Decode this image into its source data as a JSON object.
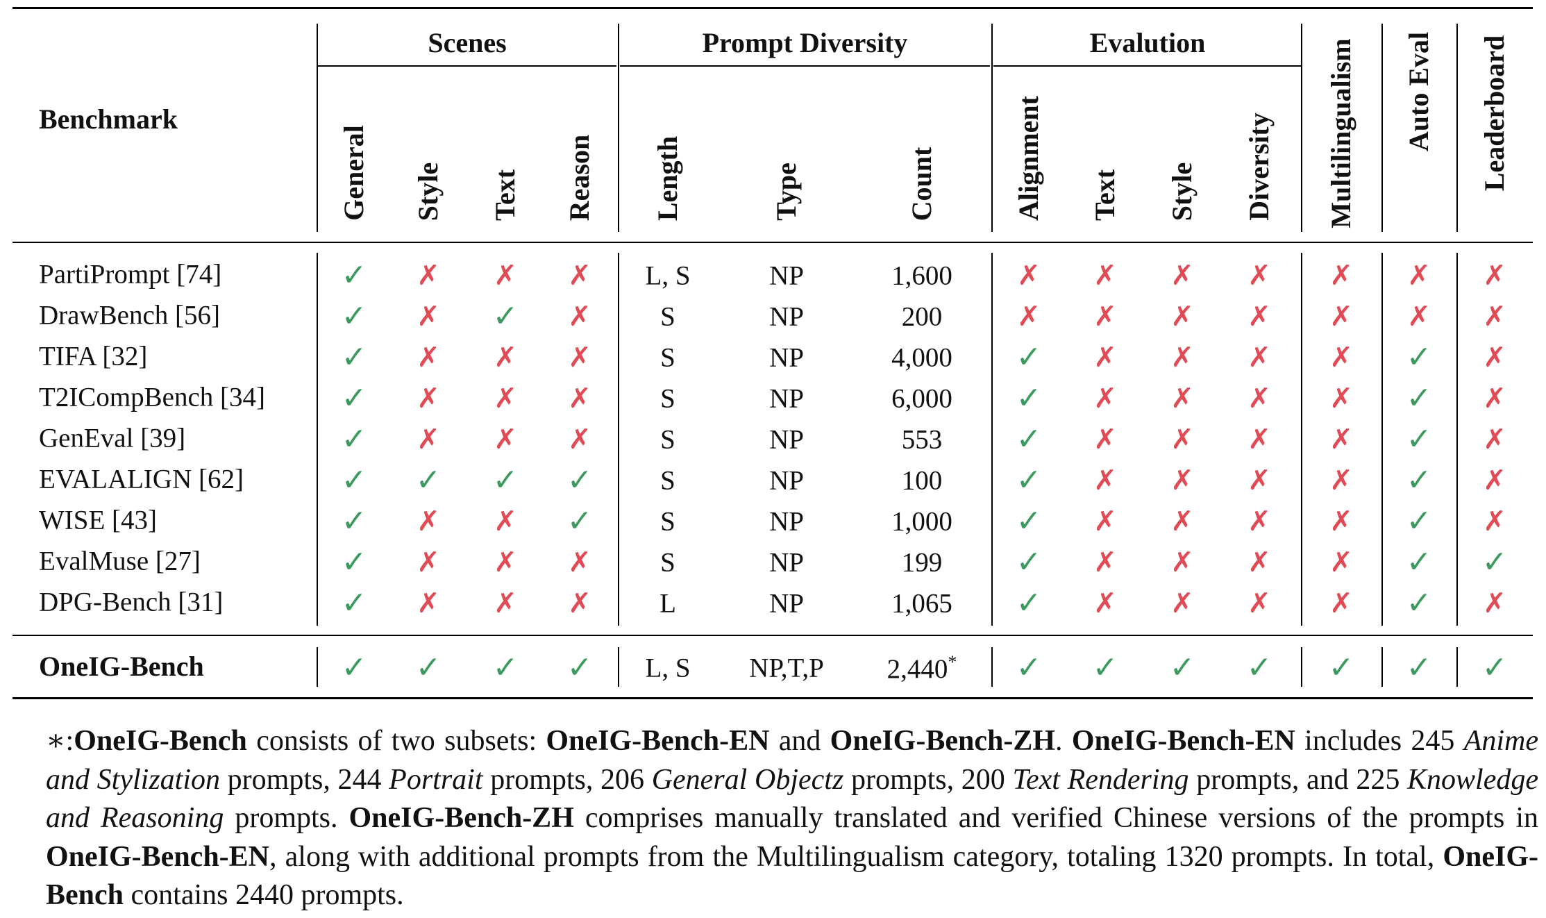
{
  "table": {
    "benchmark_header": "Benchmark",
    "groups": {
      "scenes": "Scenes",
      "prompt_diversity": "Prompt Diversity",
      "evaluation": "Evalution"
    },
    "columns": [
      "General",
      "Style",
      "Text",
      "Reason",
      "Length",
      "Type",
      "Count",
      "Alignment",
      "Text",
      "Style",
      "Diversity",
      "Multilingualism",
      "Auto Eval",
      "Leaderboard"
    ],
    "rows": [
      {
        "name": "PartiPrompt [74]",
        "cells": [
          "✓",
          "✗",
          "✗",
          "✗",
          "L, S",
          "NP",
          "1,600",
          "✗",
          "✗",
          "✗",
          "✗",
          "✗",
          "✗",
          "✗"
        ]
      },
      {
        "name": "DrawBench [56]",
        "cells": [
          "✓",
          "✗",
          "✓",
          "✗",
          "S",
          "NP",
          "200",
          "✗",
          "✗",
          "✗",
          "✗",
          "✗",
          "✗",
          "✗"
        ]
      },
      {
        "name": "TIFA [32]",
        "cells": [
          "✓",
          "✗",
          "✗",
          "✗",
          "S",
          "NP",
          "4,000",
          "✓",
          "✗",
          "✗",
          "✗",
          "✗",
          "✓",
          "✗"
        ]
      },
      {
        "name": "T2ICompBench [34]",
        "cells": [
          "✓",
          "✗",
          "✗",
          "✗",
          "S",
          "NP",
          "6,000",
          "✓",
          "✗",
          "✗",
          "✗",
          "✗",
          "✓",
          "✗"
        ]
      },
      {
        "name": "GenEval  [39]",
        "cells": [
          "✓",
          "✗",
          "✗",
          "✗",
          "S",
          "NP",
          "553",
          "✓",
          "✗",
          "✗",
          "✗",
          "✗",
          "✓",
          "✗"
        ]
      },
      {
        "name": "EVALALIGN [62]",
        "cells": [
          "✓",
          "✓",
          "✓",
          "✓",
          "S",
          "NP",
          "100",
          "✓",
          "✗",
          "✗",
          "✗",
          "✗",
          "✓",
          "✗"
        ]
      },
      {
        "name": "WISE [43]",
        "cells": [
          "✓",
          "✗",
          "✗",
          "✓",
          "S",
          "NP",
          "1,000",
          "✓",
          "✗",
          "✗",
          "✗",
          "✗",
          "✓",
          "✗"
        ]
      },
      {
        "name": "EvalMuse [27]",
        "cells": [
          "✓",
          "✗",
          "✗",
          "✗",
          "S",
          "NP",
          "199",
          "✓",
          "✗",
          "✗",
          "✗",
          "✗",
          "✓",
          "✓"
        ]
      },
      {
        "name": "DPG-Bench  [31]",
        "cells": [
          "✓",
          "✗",
          "✗",
          "✗",
          "L",
          "NP",
          "1,065",
          "✓",
          "✗",
          "✗",
          "✗",
          "✗",
          "✓",
          "✗"
        ]
      }
    ],
    "final_row": {
      "name": "OneIG-Bench",
      "cells": [
        "✓",
        "✓",
        "✓",
        "✓",
        "L, S",
        "NP,T,P",
        "2,440*",
        "✓",
        "✓",
        "✓",
        "✓",
        "✓",
        "✓",
        "✓"
      ]
    }
  },
  "footnote": {
    "s1": "∗:",
    "b1": "OneIG-Bench",
    "s2": " consists of two subsets: ",
    "b2": "OneIG-Bench-EN",
    "s3": " and ",
    "b3": "OneIG-Bench-ZH",
    "s4": ". ",
    "b4": "OneIG-Bench-EN",
    "s5": " includes 245 ",
    "i1": "Anime and Stylization",
    "s6": " prompts, 244 ",
    "i2": "Portrait",
    "s7": " prompts, 206 ",
    "i3": "General Objectz",
    "s8": " prompts, 200 ",
    "i4": "Text Rendering",
    "s9": " prompts, and 225 ",
    "i5": "Knowledge and Reasoning",
    "s10": " prompts. ",
    "b5": "OneIG-Bench-ZH",
    "s11": " comprises manually translated and verified Chinese versions of the prompts in ",
    "b6": "OneIG-Bench-EN",
    "s12": ", along with additional prompts from the Multilingualism category, totaling 1320 prompts. In total, ",
    "b7": "OneIG-Bench",
    "s13": " contains 2440 prompts."
  }
}
